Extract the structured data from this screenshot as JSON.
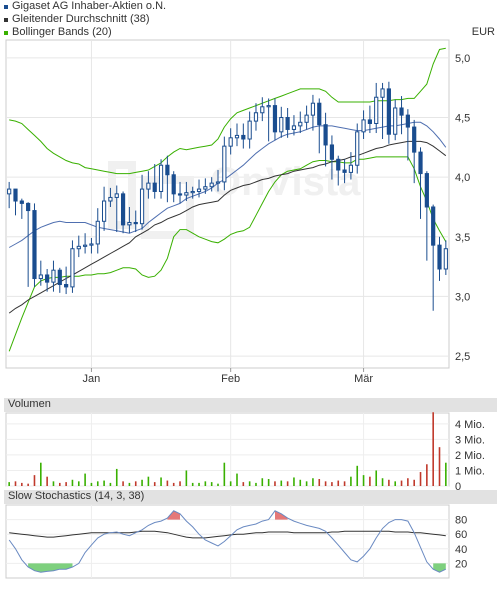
{
  "legend": {
    "items": [
      {
        "label": "Gigaset AG Inhaber-Aktien o.N.",
        "color": "#1a4d8f"
      },
      {
        "label": "Gleitender Durchschnitt (38)",
        "color": "#333333"
      },
      {
        "label": "Bollinger Bands (20)",
        "color": "#39b000"
      }
    ]
  },
  "currency": "EUR",
  "watermark": "OnVista",
  "panels": {
    "volume_title": "Volumen",
    "stoch_title": "Slow Stochastics (14, 3, 38)"
  },
  "chart_data": [
    {
      "type": "candlestick",
      "title": "",
      "x_tick_labels": [
        "Jan",
        "Feb",
        "Mär"
      ],
      "x_tick_index": [
        13,
        35,
        56
      ],
      "ylim": [
        2.4,
        5.15
      ],
      "y_ticks": [
        2.5,
        3.0,
        3.5,
        4.0,
        4.5,
        5.0
      ],
      "y_tick_labels": [
        "2,5",
        "3,0",
        "3,5",
        "4,0",
        "4,5",
        "5,0"
      ],
      "grid": true,
      "price": {
        "name": "Gigaset AG Inhaber-Aktien o.N.",
        "color": "#1a4d8f",
        "close": [
          3.9,
          3.8,
          3.78,
          3.72,
          3.15,
          3.18,
          3.12,
          3.22,
          3.1,
          3.08,
          3.4,
          3.42,
          3.43,
          3.44,
          3.63,
          3.8,
          3.83,
          3.86,
          3.6,
          3.62,
          3.61,
          3.9,
          3.95,
          3.88,
          4.1,
          4.02,
          3.86,
          3.85,
          3.87,
          3.88,
          3.9,
          3.92,
          3.95,
          3.96,
          4.26,
          4.33,
          4.35,
          4.32,
          4.47,
          4.54,
          4.59,
          4.6,
          4.38,
          4.5,
          4.4,
          4.43,
          4.46,
          4.52,
          4.62,
          4.44,
          4.27,
          4.15,
          4.06,
          4.04,
          4.1,
          4.38,
          4.48,
          4.45,
          4.67,
          4.74,
          4.36,
          4.58,
          4.52,
          4.42,
          4.21,
          4.03,
          3.75,
          3.43,
          3.23,
          3.4
        ],
        "high": [
          3.96,
          3.89,
          3.82,
          3.79,
          3.78,
          3.3,
          3.23,
          3.3,
          3.24,
          3.25,
          3.47,
          3.51,
          3.53,
          3.49,
          3.74,
          3.92,
          3.91,
          3.93,
          3.88,
          3.75,
          3.72,
          4.02,
          4.05,
          4.11,
          4.15,
          4.18,
          4.05,
          3.96,
          3.96,
          3.92,
          3.98,
          3.99,
          4.0,
          4.06,
          4.34,
          4.41,
          4.45,
          4.45,
          4.55,
          4.62,
          4.67,
          4.66,
          4.66,
          4.59,
          4.58,
          4.52,
          4.55,
          4.6,
          4.69,
          4.66,
          4.54,
          4.35,
          4.18,
          4.15,
          4.21,
          4.45,
          4.56,
          4.6,
          4.79,
          4.79,
          4.8,
          4.65,
          4.68,
          4.57,
          4.48,
          4.25,
          4.05,
          3.77,
          3.5,
          3.47
        ],
        "low": [
          3.74,
          3.68,
          3.65,
          3.08,
          3.08,
          3.09,
          3.04,
          3.04,
          3.03,
          3.02,
          3.03,
          3.33,
          3.36,
          3.36,
          3.36,
          3.55,
          3.75,
          3.54,
          3.53,
          3.53,
          3.54,
          3.56,
          3.82,
          3.82,
          3.82,
          3.79,
          3.79,
          3.78,
          3.8,
          3.82,
          3.83,
          3.86,
          3.88,
          3.88,
          3.89,
          4.19,
          4.26,
          4.24,
          4.24,
          4.39,
          4.47,
          4.3,
          4.31,
          4.33,
          4.33,
          4.35,
          4.37,
          4.4,
          4.39,
          4.2,
          4.09,
          3.98,
          3.93,
          3.95,
          3.98,
          4.03,
          4.32,
          4.37,
          4.37,
          4.32,
          4.28,
          4.31,
          4.36,
          4.14,
          3.95,
          3.65,
          3.3,
          2.88,
          3.13,
          3.18
        ],
        "open": [
          3.86,
          3.9,
          3.8,
          3.78,
          3.72,
          3.15,
          3.18,
          3.12,
          3.22,
          3.1,
          3.08,
          3.4,
          3.42,
          3.43,
          3.44,
          3.63,
          3.8,
          3.83,
          3.86,
          3.6,
          3.62,
          3.61,
          3.9,
          3.95,
          3.88,
          4.1,
          4.02,
          3.86,
          3.85,
          3.87,
          3.88,
          3.9,
          3.92,
          3.95,
          3.96,
          4.26,
          4.33,
          4.35,
          4.32,
          4.47,
          4.54,
          4.59,
          4.6,
          4.38,
          4.5,
          4.4,
          4.43,
          4.46,
          4.52,
          4.62,
          4.44,
          4.27,
          4.15,
          4.06,
          4.04,
          4.1,
          4.38,
          4.48,
          4.45,
          4.67,
          4.74,
          4.36,
          4.58,
          4.52,
          4.42,
          4.21,
          4.03,
          3.75,
          3.43,
          3.23
        ]
      },
      "moving_average": {
        "name": "Gleitender Durchschnitt (38)",
        "color": "#333333",
        "values": [
          2.86,
          2.9,
          2.93,
          2.97,
          3.0,
          3.03,
          3.06,
          3.09,
          3.12,
          3.15,
          3.18,
          3.21,
          3.24,
          3.27,
          3.3,
          3.33,
          3.36,
          3.39,
          3.42,
          3.45,
          3.5,
          3.53,
          3.56,
          3.6,
          3.62,
          3.65,
          3.67,
          3.69,
          3.72,
          3.75,
          3.77,
          3.78,
          3.79,
          3.8,
          3.85,
          3.89,
          3.91,
          3.93,
          3.94,
          3.96,
          3.98,
          3.99,
          4.01,
          4.02,
          4.03,
          4.05,
          4.06,
          4.07,
          4.08,
          4.1,
          4.11,
          4.13,
          4.14,
          4.15,
          4.17,
          4.18,
          4.2,
          4.22,
          4.24,
          4.25,
          4.27,
          4.28,
          4.29,
          4.3,
          4.3,
          4.3,
          4.29,
          4.26,
          4.22,
          4.18
        ]
      },
      "bollinger": {
        "name": "Bollinger Bands (20)",
        "color": "#39b000",
        "upper": [
          4.48,
          4.47,
          4.45,
          4.4,
          4.35,
          4.3,
          4.24,
          4.2,
          4.17,
          4.14,
          4.12,
          4.11,
          4.08,
          4.07,
          4.06,
          4.05,
          4.04,
          4.03,
          4.03,
          4.03,
          4.04,
          4.05,
          4.06,
          4.09,
          4.12,
          4.17,
          4.21,
          4.24,
          4.23,
          4.24,
          4.25,
          4.26,
          4.27,
          4.32,
          4.42,
          4.49,
          4.54,
          4.56,
          4.58,
          4.6,
          4.62,
          4.64,
          4.66,
          4.68,
          4.7,
          4.72,
          4.74,
          4.74,
          4.74,
          4.74,
          4.72,
          4.67,
          4.63,
          4.63,
          4.63,
          4.63,
          4.63,
          4.63,
          4.64,
          4.64,
          4.64,
          4.65,
          4.65,
          4.66,
          4.66,
          4.72,
          4.78,
          4.95,
          5.07,
          5.08
        ],
        "middle": [
          3.41,
          3.44,
          3.47,
          3.51,
          3.55,
          3.58,
          3.6,
          3.62,
          3.63,
          3.62,
          3.62,
          3.62,
          3.62,
          3.6,
          3.58,
          3.57,
          3.56,
          3.55,
          3.54,
          3.53,
          3.55,
          3.57,
          3.62,
          3.66,
          3.7,
          3.74,
          3.76,
          3.78,
          3.82,
          3.84,
          3.86,
          3.88,
          3.91,
          3.95,
          3.98,
          4.02,
          4.06,
          4.1,
          4.15,
          4.2,
          4.24,
          4.28,
          4.31,
          4.34,
          4.36,
          4.37,
          4.38,
          4.4,
          4.42,
          4.43,
          4.43,
          4.43,
          4.42,
          4.41,
          4.4,
          4.39,
          4.39,
          4.4,
          4.41,
          4.42,
          4.43,
          4.43,
          4.44,
          4.45,
          4.46,
          4.46,
          4.43,
          4.38,
          4.32,
          4.25
        ],
        "lower": [
          2.54,
          2.68,
          2.82,
          2.95,
          3.08,
          3.13,
          3.15,
          3.16,
          3.16,
          3.17,
          3.17,
          3.17,
          3.18,
          3.18,
          3.19,
          3.19,
          3.2,
          3.22,
          3.24,
          3.24,
          3.23,
          3.18,
          3.16,
          3.17,
          3.22,
          3.32,
          3.5,
          3.56,
          3.56,
          3.53,
          3.5,
          3.48,
          3.46,
          3.45,
          3.48,
          3.52,
          3.54,
          3.55,
          3.58,
          3.68,
          3.78,
          3.88,
          3.96,
          4.02,
          4.05,
          4.06,
          4.07,
          4.1,
          4.13,
          4.14,
          4.14,
          4.13,
          4.13,
          4.12,
          4.12,
          4.15,
          4.15,
          4.16,
          4.17,
          4.17,
          4.17,
          4.17,
          4.17,
          4.17,
          4.07,
          3.92,
          3.8,
          3.65,
          3.55,
          3.46
        ]
      }
    },
    {
      "type": "bar",
      "title": "Volumen",
      "y_ticks": [
        0,
        1,
        2,
        3,
        4
      ],
      "y_tick_labels": [
        "0",
        "1 Mio.",
        "2 Mio.",
        "3 Mio.",
        "4 Mio."
      ],
      "ylim": [
        0,
        4.7
      ],
      "values": [
        0.25,
        0.3,
        0.2,
        0.15,
        0.7,
        1.5,
        0.6,
        0.3,
        0.2,
        0.25,
        0.4,
        0.3,
        0.8,
        0.2,
        0.3,
        0.35,
        0.2,
        1.1,
        0.3,
        0.2,
        0.3,
        0.4,
        0.6,
        0.25,
        0.55,
        0.35,
        0.2,
        0.3,
        1.0,
        0.2,
        0.2,
        0.3,
        0.25,
        0.15,
        1.5,
        0.3,
        0.8,
        0.25,
        0.3,
        0.2,
        0.5,
        0.45,
        0.3,
        0.35,
        0.3,
        0.55,
        0.4,
        0.3,
        0.5,
        0.45,
        0.3,
        0.25,
        0.35,
        0.3,
        0.6,
        1.3,
        0.7,
        0.6,
        1.0,
        0.5,
        0.4,
        0.3,
        0.35,
        0.5,
        0.4,
        0.9,
        1.4,
        4.75,
        2.5,
        1.5
      ],
      "down_color": "#c0392b",
      "up_color": "#39b000"
    },
    {
      "type": "line",
      "title": "Slow Stochastics (14, 3, 38)",
      "ylim": [
        0,
        100
      ],
      "y_ticks": [
        20,
        40,
        60,
        80
      ],
      "y_tick_labels": [
        "20",
        "40",
        "60",
        "80"
      ],
      "series": [
        {
          "color": "#6a8ac2",
          "values": [
            52,
            40,
            25,
            15,
            10,
            8,
            9,
            10,
            12,
            12,
            15,
            20,
            35,
            45,
            55,
            60,
            62,
            63,
            60,
            58,
            62,
            66,
            72,
            76,
            78,
            82,
            92,
            88,
            78,
            70,
            60,
            52,
            48,
            44,
            50,
            58,
            66,
            70,
            72,
            74,
            78,
            80,
            92,
            88,
            82,
            78,
            75,
            72,
            70,
            68,
            64,
            55,
            45,
            35,
            25,
            22,
            30,
            40,
            55,
            68,
            76,
            80,
            80,
            78,
            62,
            42,
            22,
            12,
            8,
            12
          ]
        },
        {
          "color": "#333333",
          "values": [
            62,
            61,
            60,
            59,
            58,
            57,
            56,
            56,
            57,
            58,
            59,
            60,
            61,
            62,
            62,
            62,
            62,
            62,
            62,
            62,
            63,
            64,
            64,
            64,
            63,
            62,
            60,
            58,
            56,
            55,
            55,
            55,
            56,
            57,
            58,
            59,
            60,
            60,
            61,
            62,
            62,
            63,
            63,
            63,
            63,
            62,
            62,
            62,
            62,
            62,
            62,
            63,
            63,
            64,
            64,
            64,
            64,
            64,
            64,
            64,
            64,
            63,
            63,
            63,
            62,
            62,
            61,
            60,
            59,
            58
          ]
        }
      ],
      "fill_above": 80,
      "fill_below": 20,
      "fill_above_color": "#e57878",
      "fill_below_color": "#7ed07e"
    }
  ]
}
